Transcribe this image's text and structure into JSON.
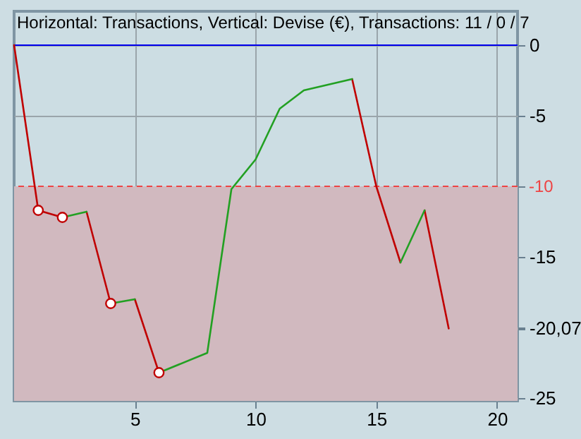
{
  "chart_data": {
    "type": "line",
    "title": "Horizontal: Transactions, Vertical: Devise (€), Transactions: 11 / 0 / 7",
    "series": [
      {
        "color": "#c00000",
        "x": [
          0,
          1,
          2,
          null,
          3,
          4,
          null,
          5,
          6,
          null,
          14,
          15,
          16,
          null,
          17,
          18
        ],
        "values": [
          0,
          -11.7,
          -12.2,
          null,
          -11.8,
          -18.3,
          null,
          -18.0,
          -23.2,
          null,
          -2.4,
          -10.0,
          -15.4,
          null,
          -11.7,
          -20.07
        ]
      },
      {
        "color": "#22a022",
        "x": [
          2,
          3,
          null,
          4,
          5,
          null,
          6,
          8,
          9,
          10,
          11,
          12,
          14,
          null,
          16,
          17
        ],
        "values": [
          -12.2,
          -11.8,
          null,
          -18.3,
          -18.0,
          null,
          -23.2,
          -21.8,
          -10.2,
          -8.1,
          -4.5,
          -3.2,
          -2.4,
          null,
          -15.4,
          -11.7
        ]
      },
      {
        "type": "scatter",
        "x": [
          1,
          2,
          4,
          6
        ],
        "values": [
          -11.7,
          -12.2,
          -18.3,
          -23.2
        ],
        "color": "#c00000",
        "marker": "circle"
      }
    ],
    "xlim": [
      0,
      20.85
    ],
    "ylim": [
      -25.2,
      2.4
    ],
    "xticks": [
      5,
      10,
      15,
      20
    ],
    "yticks": [
      0,
      -5,
      {
        "value": -10,
        "label": null
      },
      -15,
      {
        "value": -20,
        "label": null
      },
      {
        "value": -20.07,
        "label": "-20,07"
      },
      -25
    ],
    "grid": true,
    "ref_lines": [
      {
        "axis": "y",
        "value": 0,
        "color": "#0000ee",
        "line_style": "solid"
      },
      {
        "axis": "y",
        "value": -10,
        "label": "-10",
        "color": "#ee4444",
        "line_style": "dashed"
      }
    ],
    "bands": [
      {
        "axis": "y",
        "from": -25.2,
        "to": -10,
        "color": "#d1b9bf"
      }
    ]
  }
}
